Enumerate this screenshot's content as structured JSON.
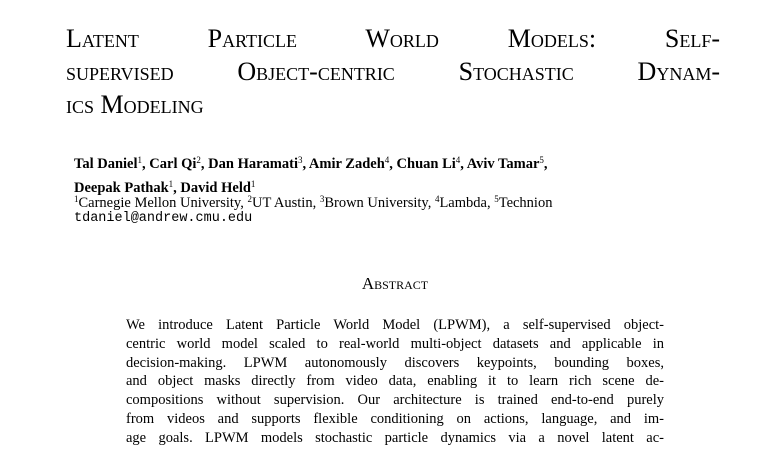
{
  "title_lines": [
    "Latent Particle World Models: Self-",
    "supervised Object-centric Stochastic Dynam-",
    "ics Modeling"
  ],
  "authors": [
    [
      {
        "name": "Tal Daniel",
        "affil": "1",
        "sep": ","
      },
      {
        "name": "Carl Qi",
        "affil": "2",
        "sep": ","
      },
      {
        "name": "Dan Haramati",
        "affil": "3",
        "sep": ","
      },
      {
        "name": "Amir Zadeh",
        "affil": "4",
        "sep": ","
      },
      {
        "name": "Chuan Li",
        "affil": "4",
        "sep": ","
      },
      {
        "name": "Aviv Tamar",
        "affil": "5",
        "sep": ","
      }
    ],
    [
      {
        "name": "Deepak Pathak",
        "affil": "1",
        "sep": ","
      },
      {
        "name": "David Held",
        "affil": "1"
      }
    ]
  ],
  "affiliations": [
    {
      "sup": "1",
      "name": "Carnegie Mellon University,"
    },
    {
      "sup": "2",
      "name": "UT Austin,"
    },
    {
      "sup": "3",
      "name": "Brown University,"
    },
    {
      "sup": "4",
      "name": "Lambda,"
    },
    {
      "sup": "5",
      "name": "Technion"
    }
  ],
  "email": "tdaniel@andrew.cmu.edu",
  "abstract_heading": "Abstract",
  "abstract_lines": [
    "We introduce Latent Particle World Model (LPWM), a self-supervised object-",
    "centric world model scaled to real-world multi-object datasets and applicable in",
    "decision-making.  LPWM autonomously discovers keypoints, bounding boxes,",
    "and object masks directly from video data, enabling it to learn rich scene de-",
    "compositions without supervision.  Our architecture is trained end-to-end purely",
    "from videos and supports flexible conditioning on actions, language, and im-",
    "age goals.  LPWM models stochastic particle dynamics via a novel latent ac-"
  ]
}
